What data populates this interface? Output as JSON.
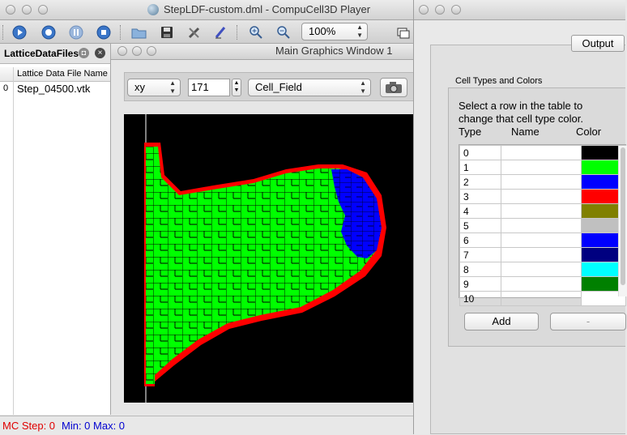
{
  "main_window": {
    "title": "StepLDF-custom.dml - CompuCell3D Player"
  },
  "toolbar": {
    "icons": [
      "run-icon",
      "step-icon",
      "pause-icon",
      "stop-icon",
      "open-icon",
      "save-icon",
      "config-icon",
      "edit-icon",
      "zoom-in-icon",
      "zoom-out-icon",
      "new-window-icon"
    ],
    "zoom_value": "100%"
  },
  "lattice_panel": {
    "title": "LatticeDataFiles",
    "column_header": "Lattice Data File Name",
    "rows": [
      {
        "index": "0",
        "name": "Step_04500.vtk"
      }
    ]
  },
  "graphics_window": {
    "title": "Main Graphics Window 1",
    "plane": "xy",
    "slice": "171",
    "field": "Cell_Field",
    "colors": {
      "background": "#000000",
      "medium_cell": "#00ff00",
      "boundary": "#ff0000",
      "cap": "#0000ff"
    }
  },
  "status_bar": {
    "mc_step": "MC Step: 0",
    "min_max": "Min: 0 Max: 0"
  },
  "right_window": {
    "tab_label": "Output",
    "group_title": "Cell Types and Colors",
    "instructions": "Select a row in the table to change that cell type color.",
    "headers": {
      "type": "Type",
      "name": "Name",
      "color": "Color"
    },
    "cell_types": [
      {
        "type": "0",
        "name": "",
        "color": "#000000"
      },
      {
        "type": "1",
        "name": "",
        "color": "#00ff00"
      },
      {
        "type": "2",
        "name": "",
        "color": "#0000ff"
      },
      {
        "type": "3",
        "name": "",
        "color": "#ff0000"
      },
      {
        "type": "4",
        "name": "",
        "color": "#808000"
      },
      {
        "type": "5",
        "name": "",
        "color": "#c0c0c0"
      },
      {
        "type": "6",
        "name": "",
        "color": "#0000ff"
      },
      {
        "type": "7",
        "name": "",
        "color": "#000080"
      },
      {
        "type": "8",
        "name": "",
        "color": "#00ffff"
      },
      {
        "type": "9",
        "name": "",
        "color": "#008000"
      },
      {
        "type": "10",
        "name": "",
        "color": "#ffffff"
      }
    ],
    "add_label": "Add",
    "remove_label": "-"
  }
}
